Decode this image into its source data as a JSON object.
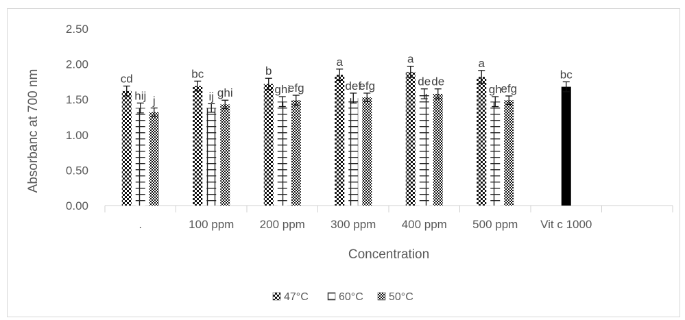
{
  "chart_data": {
    "type": "bar",
    "title": "",
    "xlabel": "Concentration",
    "ylabel": "Absorbanc at 700 nm",
    "ylim": [
      0,
      2.5
    ],
    "yticks": [
      "0.00",
      "0.50",
      "1.00",
      "1.50",
      "2.00",
      "2.50"
    ],
    "categories": [
      ".",
      "100 ppm",
      "200 ppm",
      "300 ppm",
      "400 ppm",
      "500 ppm",
      "Vit c 1000"
    ],
    "series": [
      {
        "name": "47°C",
        "color": "#1a1a1a",
        "pattern": "checker",
        "values": [
          1.62,
          1.69,
          1.72,
          1.85,
          1.89,
          1.82,
          null
        ],
        "errors": [
          0.07,
          0.07,
          0.08,
          0.08,
          0.08,
          0.09,
          null
        ],
        "labels": [
          "cd",
          "bc",
          "b",
          "a",
          "a",
          "a",
          null
        ]
      },
      {
        "name": "60°C",
        "color": "#1a1a1a",
        "pattern": "ibeam",
        "values": [
          1.38,
          1.38,
          1.47,
          1.52,
          1.58,
          1.47,
          null
        ],
        "errors": [
          0.07,
          0.06,
          0.07,
          0.07,
          0.07,
          0.07,
          null
        ],
        "labels": [
          "hij",
          "ij",
          "ghi",
          "def",
          "de",
          "gh",
          null
        ]
      },
      {
        "name": "50°C",
        "color": "#1a1a1a",
        "pattern": "dense",
        "values": [
          1.32,
          1.43,
          1.49,
          1.53,
          1.58,
          1.49,
          null
        ],
        "errors": [
          0.06,
          0.06,
          0.07,
          0.06,
          0.07,
          0.06,
          null
        ],
        "labels": [
          "j",
          "ghi",
          "efg",
          "efg",
          "de",
          "efg",
          null
        ]
      },
      {
        "name": "",
        "color": "#000000",
        "pattern": "solid",
        "values": [
          null,
          null,
          null,
          null,
          null,
          null,
          1.68
        ],
        "errors": [
          null,
          null,
          null,
          null,
          null,
          null,
          0.07
        ],
        "labels": [
          null,
          null,
          null,
          null,
          null,
          null,
          "bc"
        ]
      }
    ],
    "legend": {
      "position": "bottom",
      "entries": [
        "47°C",
        "60°C",
        "50°C"
      ]
    },
    "grid": false
  }
}
